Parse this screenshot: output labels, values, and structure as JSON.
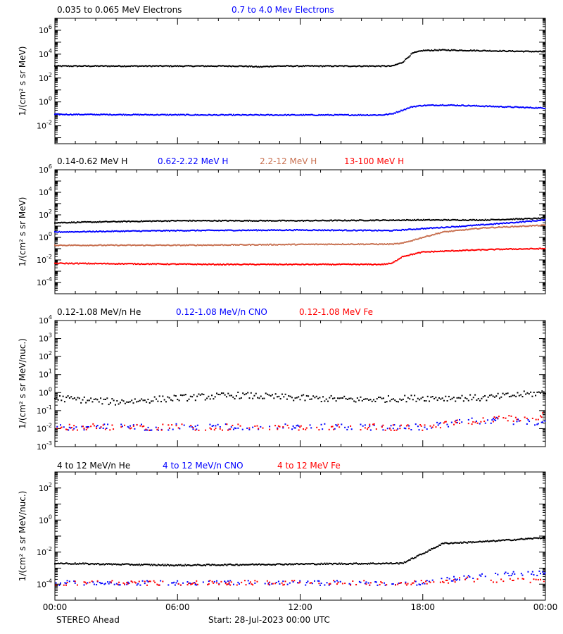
{
  "footer": {
    "spacecraft": "STEREO Ahead",
    "start": "Start: 28-Jul-2023 00:00 UTC"
  },
  "x_axis": {
    "ticks": [
      0,
      6,
      12,
      18,
      24
    ],
    "tick_labels": [
      "00:00",
      "06:00",
      "12:00",
      "18:00",
      "00:00"
    ]
  },
  "chart_data": [
    {
      "type": "scatter",
      "ylabel": "1/(cm² s sr MeV)",
      "yscale": "log",
      "ylim_exp": [
        -3.5,
        7
      ],
      "ytick_exponents": [
        -2,
        0,
        2,
        4,
        6
      ],
      "series": [
        {
          "name": "0.035 to 0.065 MeV Electrons",
          "color": "#000000",
          "points": [
            [
              0,
              1000
            ],
            [
              9,
              1000
            ],
            [
              9.5,
              950
            ],
            [
              10,
              850
            ],
            [
              10.5,
              950
            ],
            [
              11,
              1000
            ],
            [
              16.5,
              1000
            ],
            [
              17,
              2000
            ],
            [
              17.5,
              12000
            ],
            [
              18,
              20000
            ],
            [
              19,
              22000
            ],
            [
              24,
              16000
            ]
          ]
        },
        {
          "name": "0.7 to 4.0 Mev Electrons",
          "color": "#0000ff",
          "points": [
            [
              0,
              0.09
            ],
            [
              8,
              0.08
            ],
            [
              16,
              0.08
            ],
            [
              16.5,
              0.1
            ],
            [
              17,
              0.2
            ],
            [
              17.5,
              0.4
            ],
            [
              18,
              0.5
            ],
            [
              19,
              0.55
            ],
            [
              20,
              0.5
            ],
            [
              24,
              0.3
            ]
          ]
        }
      ]
    },
    {
      "type": "scatter",
      "ylabel": "1/(cm² s sr MeV)",
      "yscale": "log",
      "ylim_exp": [
        -5,
        6
      ],
      "ytick_exponents": [
        -4,
        -2,
        0,
        2,
        4,
        6
      ],
      "series": [
        {
          "name": "0.14-0.62 MeV H",
          "color": "#000000",
          "points": [
            [
              0,
              20
            ],
            [
              3,
              25
            ],
            [
              6,
              30
            ],
            [
              12,
              30
            ],
            [
              18,
              35
            ],
            [
              21,
              35
            ],
            [
              24,
              50
            ]
          ]
        },
        {
          "name": "0.62-2.22 MeV H",
          "color": "#0000ff",
          "points": [
            [
              0,
              3
            ],
            [
              3,
              3.5
            ],
            [
              6,
              4
            ],
            [
              12,
              4.5
            ],
            [
              16.5,
              4
            ],
            [
              18,
              6
            ],
            [
              20,
              10
            ],
            [
              22,
              18
            ],
            [
              24,
              35
            ]
          ]
        },
        {
          "name": "2.2-12 MeV H",
          "color": "#c87050",
          "points": [
            [
              0,
              0.2
            ],
            [
              6,
              0.2
            ],
            [
              14,
              0.25
            ],
            [
              16.5,
              0.25
            ],
            [
              17,
              0.3
            ],
            [
              18,
              1
            ],
            [
              19,
              3
            ],
            [
              21,
              7
            ],
            [
              24,
              12
            ]
          ]
        },
        {
          "name": "13-100 MeV H",
          "color": "#ff0000",
          "points": [
            [
              0,
              0.005
            ],
            [
              8,
              0.004
            ],
            [
              16,
              0.004
            ],
            [
              16.5,
              0.005
            ],
            [
              17,
              0.02
            ],
            [
              18,
              0.05
            ],
            [
              20,
              0.07
            ],
            [
              22,
              0.09
            ],
            [
              24,
              0.1
            ]
          ]
        }
      ]
    },
    {
      "type": "scatter",
      "ylabel": "1/(cm² s sr MeV/nuc.)",
      "yscale": "log",
      "ylim_exp": [
        -3,
        4
      ],
      "ytick_exponents": [
        -3,
        -2,
        -1,
        0,
        1,
        2,
        3,
        4
      ],
      "series": [
        {
          "name": "0.12-1.08 MeV/n He",
          "color": "#000000",
          "points": [
            [
              0,
              0.5
            ],
            [
              3,
              0.3
            ],
            [
              6,
              0.5
            ],
            [
              9,
              0.7
            ],
            [
              12,
              0.5
            ],
            [
              15,
              0.4
            ],
            [
              18,
              0.5
            ],
            [
              21,
              0.5
            ],
            [
              24,
              1
            ]
          ]
        },
        {
          "name": "0.12-1.08 MeV/n CNO",
          "color": "#0000ff",
          "points": [
            [
              0,
              0.012
            ],
            [
              6,
              0.012
            ],
            [
              12,
              0.012
            ],
            [
              18,
              0.012
            ],
            [
              21,
              0.03
            ],
            [
              24,
              0.02
            ]
          ]
        },
        {
          "name": "0.12-1.08 MeV Fe",
          "color": "#ff0000",
          "points": [
            [
              0,
              0.012
            ],
            [
              6,
              0.012
            ],
            [
              12,
              0.012
            ],
            [
              18,
              0.012
            ],
            [
              21,
              0.03
            ],
            [
              24,
              0.05
            ]
          ]
        }
      ]
    },
    {
      "type": "scatter",
      "ylabel": "1/(cm² s sr MeV/nuc.)",
      "yscale": "log",
      "ylim_exp": [
        -5,
        3
      ],
      "ytick_exponents": [
        -4,
        -2,
        0,
        2
      ],
      "series": [
        {
          "name": "4 to 12 MeV/n He",
          "color": "#000000",
          "points": [
            [
              0,
              0.002
            ],
            [
              6,
              0.0015
            ],
            [
              12,
              0.0018
            ],
            [
              17,
              0.002
            ],
            [
              18,
              0.008
            ],
            [
              19,
              0.035
            ],
            [
              21,
              0.045
            ],
            [
              24,
              0.08
            ]
          ]
        },
        {
          "name": "4 to 12 MeV/n CNO",
          "color": "#0000ff",
          "points": [
            [
              0,
              0.00012
            ],
            [
              12,
              0.00012
            ],
            [
              18,
              0.00012
            ],
            [
              21,
              0.0004
            ],
            [
              24,
              0.0005
            ]
          ]
        },
        {
          "name": "4 to 12 MeV Fe",
          "color": "#ff0000",
          "points": [
            [
              0,
              0.00012
            ],
            [
              12,
              0.00012
            ],
            [
              18,
              0.00012
            ],
            [
              20,
              0.0002
            ],
            [
              24,
              0.00015
            ]
          ]
        }
      ]
    }
  ]
}
